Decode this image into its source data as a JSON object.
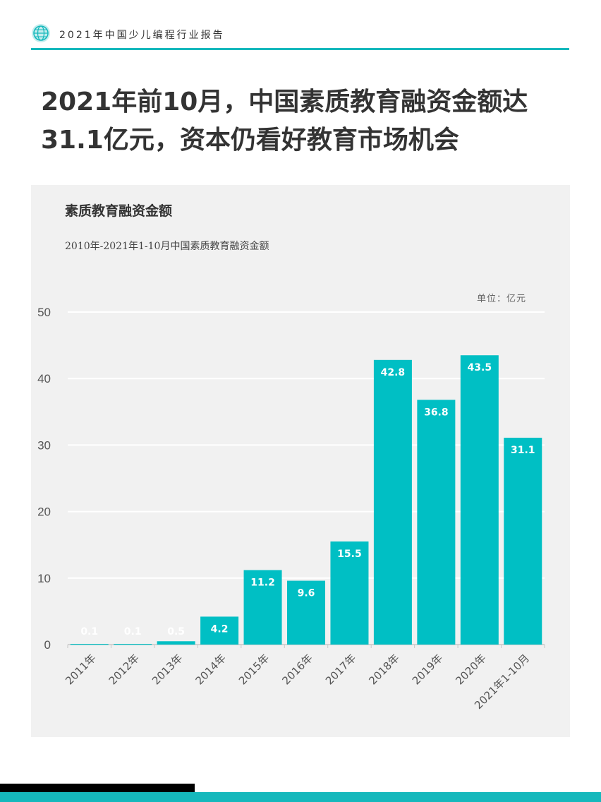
{
  "header": {
    "report_title": "2021年中国少儿编程行业报告",
    "accent_color": "#15b8bc",
    "logo_icon": "globe-icon"
  },
  "headline": {
    "line1": "2021年前10月，中国素质教育融资金额达",
    "line2": "31.1亿元，资本仍看好教育市场机会"
  },
  "chart_data": {
    "type": "bar",
    "title": "素质教育融资金额",
    "subtitle": "2010年-2021年1-10月中国素质教育融资金额",
    "unit_label": "单位：亿元",
    "categories": [
      "2011年",
      "2012年",
      "2013年",
      "2014年",
      "2015年",
      "2016年",
      "2017年",
      "2018年",
      "2019年",
      "2020年",
      "2021年1-10月"
    ],
    "values": [
      0.1,
      0.1,
      0.5,
      4.2,
      11.2,
      9.6,
      15.5,
      42.8,
      36.8,
      43.5,
      31.1
    ],
    "data_labels": [
      "0.1",
      "0.1",
      "0.5",
      "4.2",
      "11.2",
      "9.6",
      "15.5",
      "42.8",
      "36.8",
      "43.5",
      "31.1"
    ],
    "ylim": [
      0,
      50
    ],
    "yticks": [
      0,
      10,
      20,
      30,
      40,
      50
    ],
    "bar_color": "#00bfc4",
    "grid": true,
    "xlabel": "",
    "ylabel": ""
  }
}
